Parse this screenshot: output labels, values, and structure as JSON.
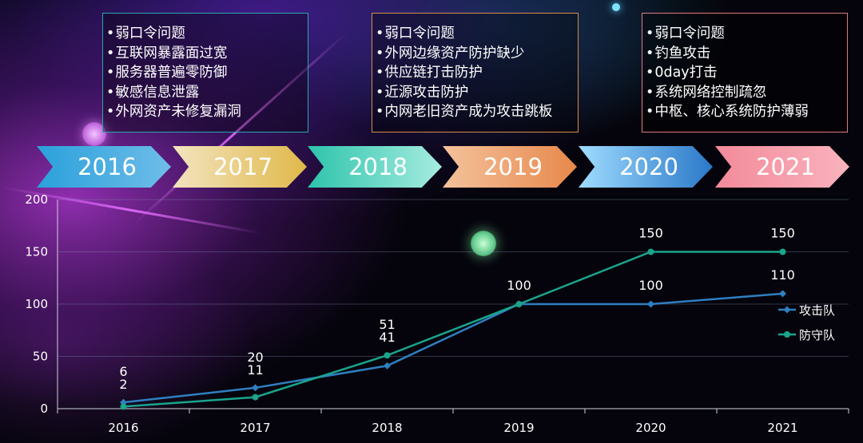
{
  "years_banner": [
    "2016",
    "2017",
    "2018",
    "2019",
    "2020",
    "2021"
  ],
  "boxes": [
    {
      "items": [
        "弱口令问题",
        "互联网暴露面过宽",
        "服务器普遍零防御",
        "敏感信息泄露",
        "外网资产未修复漏洞"
      ]
    },
    {
      "items": [
        "弱口令问题",
        "外网边缘资产防护缺少",
        "供应链打击防护",
        "近源攻击防护",
        "内网老旧资产成为攻击跳板"
      ]
    },
    {
      "items": [
        "弱口令问题",
        "钓鱼攻击",
        "0day打击",
        "系统网络控制疏忽",
        "中枢、核心系统防护薄弱"
      ]
    }
  ],
  "chart_data": {
    "type": "line",
    "x": [
      "2016",
      "2017",
      "2018",
      "2019",
      "2020",
      "2021"
    ],
    "ylim": [
      0,
      200
    ],
    "yticks": [
      0,
      50,
      100,
      150,
      200
    ],
    "series": [
      {
        "name": "攻击队",
        "values": [
          6,
          20,
          41,
          100,
          100,
          110
        ],
        "color": "#2f7fc1"
      },
      {
        "name": "防守队",
        "values": [
          2,
          11,
          51,
          100,
          150,
          150
        ],
        "color": "#1aa58c"
      }
    ],
    "legend": "right"
  }
}
